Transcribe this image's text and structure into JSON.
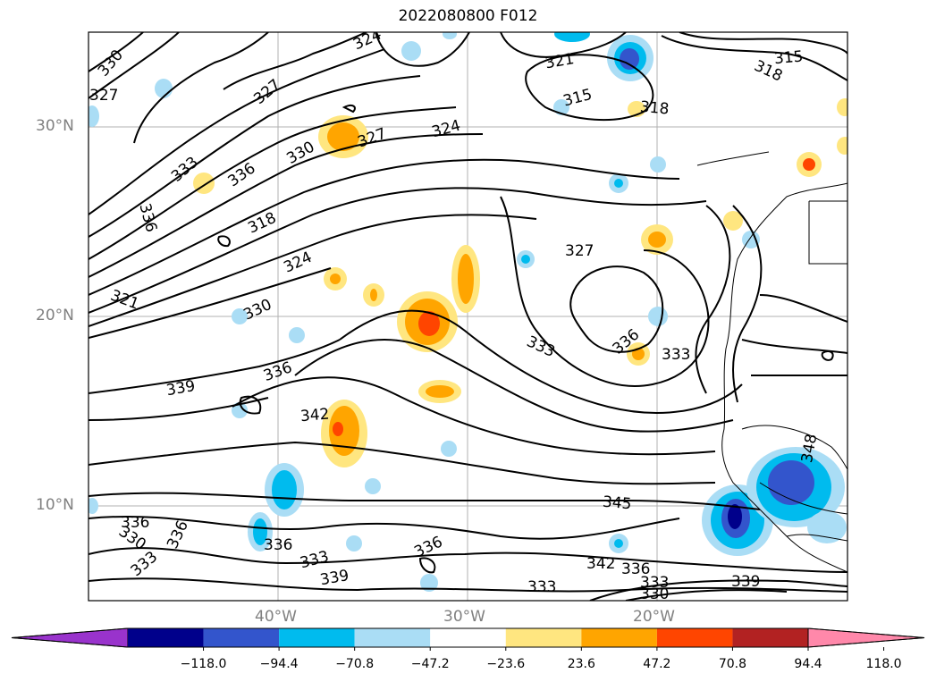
{
  "title": "2022080800 F012",
  "latitude_labels": [
    "30°N",
    "20°N",
    "10°N"
  ],
  "longitude_labels": [
    "40°W",
    "30°W",
    "20°W"
  ],
  "contour_labels": [
    "330",
    "327",
    "324",
    "321",
    "315",
    "318",
    "315",
    "318",
    "327",
    "333",
    "336",
    "330",
    "327",
    "324",
    "336",
    "318",
    "324",
    "327",
    "321",
    "330",
    "336",
    "333",
    "336",
    "339",
    "333",
    "342",
    "336",
    "348",
    "345",
    "336",
    "333",
    "336",
    "330",
    "333",
    "339",
    "336",
    "342",
    "336",
    "333",
    "330",
    "339",
    "333"
  ],
  "colorbar": {
    "tick_labels": [
      "−118.0",
      "−94.4",
      "−70.8",
      "−47.2",
      "−23.6",
      "23.6",
      "47.2",
      "70.8",
      "94.4",
      "118.0"
    ],
    "colors": [
      "#9933cc",
      "#00008b",
      "#3355cc",
      "#00bbee",
      "#aaddf5",
      "#ffffff",
      "#ffe680",
      "#ffa500",
      "#ff4500",
      "#b22222",
      "#ff88aa"
    ]
  },
  "colors": {
    "negative_dark": "#00008b",
    "negative_mid": "#3355cc",
    "negative_light": "#00bbee",
    "negative_pale": "#aaddf5",
    "positive_pale": "#ffe680",
    "positive_mid": "#ffa500",
    "positive_dark": "#ff4500",
    "grid": "#b0b0b0",
    "contour": "#000000"
  }
}
